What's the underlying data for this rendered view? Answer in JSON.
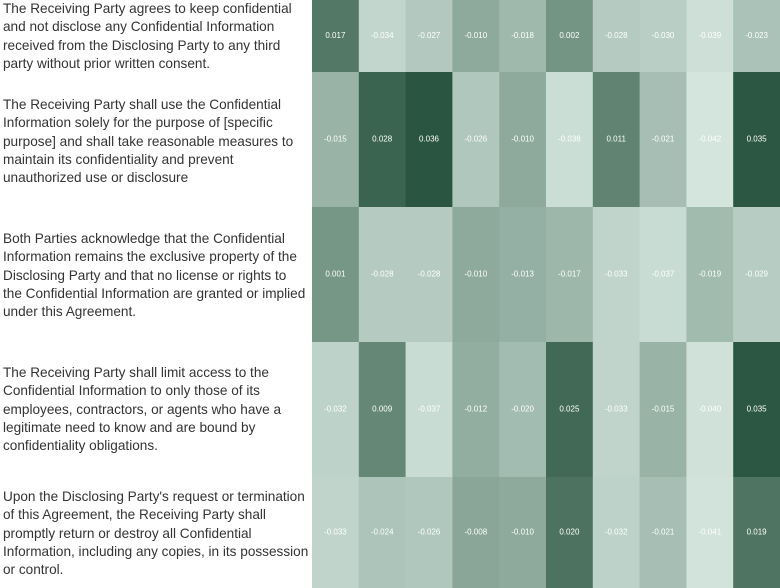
{
  "chart_data": {
    "type": "heatmap",
    "rows": [
      "The Receiving Party agrees to keep confidential and not disclose any Confidential Information received from the Disclosing Party to any third party without prior written consent.",
      "The Receiving Party shall use the Confidential Information solely for the purpose of [specific purpose] and shall take reasonable measures to maintain its confidentiality and prevent unauthorized use or disclosure",
      "Both Parties acknowledge that the Confidential Information remains the exclusive property of the Disclosing Party and that no license or rights to the Confidential Information are granted or implied under this Agreement.",
      "The Receiving Party shall limit access to the Confidential Information to only those of its employees, contractors, or agents who have a legitimate need to know and are bound by confidentiality obligations.",
      "Upon the Disclosing Party's request or termination of this Agreement, the Receiving Party shall promptly return or destroy all Confidential Information, including any copies, in its possession or control."
    ],
    "values": [
      [
        0.017,
        -0.034,
        -0.027,
        -0.01,
        -0.018,
        0.002,
        -0.028,
        -0.03,
        -0.039,
        -0.023
      ],
      [
        -0.015,
        0.028,
        0.036,
        -0.026,
        -0.01,
        -0.038,
        0.011,
        -0.021,
        -0.042,
        0.035
      ],
      [
        0.001,
        -0.028,
        -0.028,
        -0.01,
        -0.013,
        -0.017,
        -0.033,
        -0.037,
        -0.019,
        -0.029
      ],
      [
        -0.032,
        0.009,
        -0.037,
        -0.012,
        -0.02,
        0.025,
        -0.033,
        -0.015,
        -0.04,
        0.035
      ],
      [
        -0.033,
        -0.024,
        -0.026,
        -0.008,
        -0.01,
        0.02,
        -0.032,
        -0.021,
        -0.041,
        0.019
      ]
    ],
    "value_labels": [
      [
        "0.017",
        "-0.034",
        "-0.027",
        "-0.010",
        "-0.018",
        "0.002",
        "-0.028",
        "-0.030",
        "-0.039",
        "-0.023"
      ],
      [
        "-0.015",
        "0.028",
        "0.036",
        "-0.026",
        "-0.010",
        "-0.038",
        "0.011",
        "-0.021",
        "-0.042",
        "0.035"
      ],
      [
        "0.001",
        "-0.028",
        "-0.028",
        "-0.010",
        "-0.013",
        "-0.017",
        "-0.033",
        "-0.037",
        "-0.019",
        "-0.029"
      ],
      [
        "-0.032",
        "0.009",
        "-0.037",
        "-0.012",
        "-0.020",
        "0.025",
        "-0.033",
        "-0.015",
        "-0.040",
        "0.035"
      ],
      [
        "-0.033",
        "-0.024",
        "-0.026",
        "-0.008",
        "-0.010",
        "0.020",
        "-0.032",
        "-0.021",
        "-0.041",
        "0.019"
      ]
    ],
    "colors": {
      "low": "#d3e5dd",
      "high": "#2a5540"
    }
  }
}
